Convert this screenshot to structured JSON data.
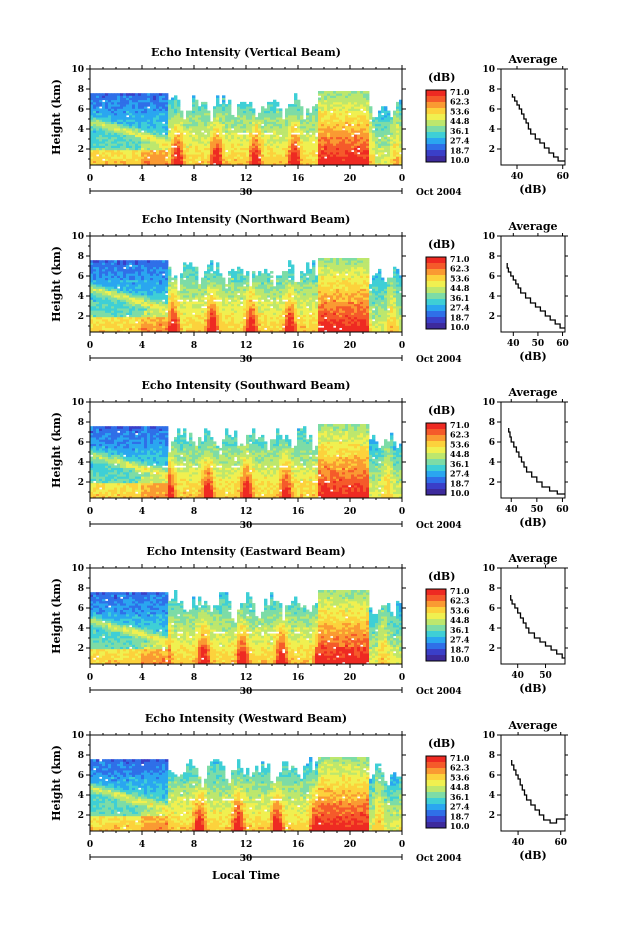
{
  "chart_data": {
    "type": "heatmap",
    "xlabel": "Local Time",
    "date_label": "30",
    "date_suffix": "Oct 2004",
    "colorbar_unit": "(dB)",
    "colorbar_ticks": [
      "71.0",
      "62.3",
      "53.6",
      "44.8",
      "36.1",
      "27.4",
      "18.7",
      "10.0"
    ],
    "colorbar_colors": [
      "#ee2a22",
      "#f55a2a",
      "#fa9a32",
      "#fcd23c",
      "#f0f050",
      "#bde76d",
      "#7ddca6",
      "#3ecfd6",
      "#2aa6f0",
      "#2f6fe8",
      "#3a3fc8",
      "#3d2a9c"
    ],
    "time_ticks": [
      "0",
      "4",
      "8",
      "12",
      "16",
      "20",
      "0"
    ],
    "height_ticks": [
      "2",
      "4",
      "6",
      "8",
      "10"
    ],
    "height_axis_label": "Height (km)",
    "average_title": "Average",
    "average_xlabel": "(dB)",
    "panels": [
      {
        "title": "Echo Intensity (Vertical Beam)",
        "avg_ticks": [
          "40",
          "60"
        ],
        "avg_xlim": [
          33,
          61
        ],
        "avg_profile": [
          [
            61,
            0.8
          ],
          [
            58,
            1.2
          ],
          [
            56,
            1.6
          ],
          [
            54,
            2.1
          ],
          [
            52,
            2.6
          ],
          [
            50,
            3.0
          ],
          [
            48,
            3.5
          ],
          [
            46,
            4.0
          ],
          [
            45,
            4.6
          ],
          [
            44,
            5.0
          ],
          [
            43,
            5.5
          ],
          [
            42,
            6.0
          ],
          [
            41,
            6.4
          ],
          [
            40,
            6.8
          ],
          [
            39,
            7.2
          ],
          [
            38,
            7.5
          ]
        ]
      },
      {
        "title": "Echo Intensity (Northward Beam)",
        "avg_ticks": [
          "40",
          "50",
          "60"
        ],
        "avg_xlim": [
          35,
          61
        ],
        "avg_profile": [
          [
            61,
            0.8
          ],
          [
            59,
            1.2
          ],
          [
            57,
            1.6
          ],
          [
            55,
            2.0
          ],
          [
            53,
            2.5
          ],
          [
            51,
            2.9
          ],
          [
            49,
            3.3
          ],
          [
            47,
            3.8
          ],
          [
            45,
            4.3
          ],
          [
            43,
            4.8
          ],
          [
            42,
            5.2
          ],
          [
            41,
            5.6
          ],
          [
            40,
            6.0
          ],
          [
            39,
            6.4
          ],
          [
            38,
            6.8
          ],
          [
            37.5,
            7.3
          ]
        ]
      },
      {
        "title": "Echo Intensity (Southward Beam)",
        "avg_ticks": [
          "40",
          "50",
          "60"
        ],
        "avg_xlim": [
          36,
          61
        ],
        "avg_profile": [
          [
            61,
            0.8
          ],
          [
            58,
            1.1
          ],
          [
            55,
            1.5
          ],
          [
            52,
            2.0
          ],
          [
            50,
            2.5
          ],
          [
            48,
            3.0
          ],
          [
            46,
            3.5
          ],
          [
            45,
            4.0
          ],
          [
            44,
            4.5
          ],
          [
            43,
            5.0
          ],
          [
            42,
            5.5
          ],
          [
            41,
            6.0
          ],
          [
            40,
            6.5
          ],
          [
            39.5,
            7.0
          ],
          [
            39,
            7.4
          ]
        ]
      },
      {
        "title": "Echo Intensity (Eastward Beam)",
        "avg_ticks": [
          "40",
          "50"
        ],
        "avg_xlim": [
          34,
          57
        ],
        "avg_profile": [
          [
            57,
            1.0
          ],
          [
            56,
            1.4
          ],
          [
            54,
            1.8
          ],
          [
            52,
            2.2
          ],
          [
            50,
            2.6
          ],
          [
            48,
            3.0
          ],
          [
            46,
            3.5
          ],
          [
            44,
            4.0
          ],
          [
            43,
            4.5
          ],
          [
            42,
            5.0
          ],
          [
            41,
            5.5
          ],
          [
            40,
            6.0
          ],
          [
            39,
            6.4
          ],
          [
            38,
            6.8
          ],
          [
            37.5,
            7.3
          ]
        ]
      },
      {
        "title": "Echo Intensity (Westward Beam)",
        "avg_ticks": [
          "40",
          "60"
        ],
        "avg_xlim": [
          32,
          62
        ],
        "avg_profile": [
          [
            62,
            1.6
          ],
          [
            58,
            1.2
          ],
          [
            55,
            1.5
          ],
          [
            52,
            2.0
          ],
          [
            50,
            2.5
          ],
          [
            48,
            3.0
          ],
          [
            46,
            3.5
          ],
          [
            44,
            4.0
          ],
          [
            43,
            4.5
          ],
          [
            42,
            5.0
          ],
          [
            41,
            5.6
          ],
          [
            40,
            6.0
          ],
          [
            39,
            6.5
          ],
          [
            38,
            7.0
          ],
          [
            37,
            7.5
          ]
        ]
      }
    ]
  }
}
